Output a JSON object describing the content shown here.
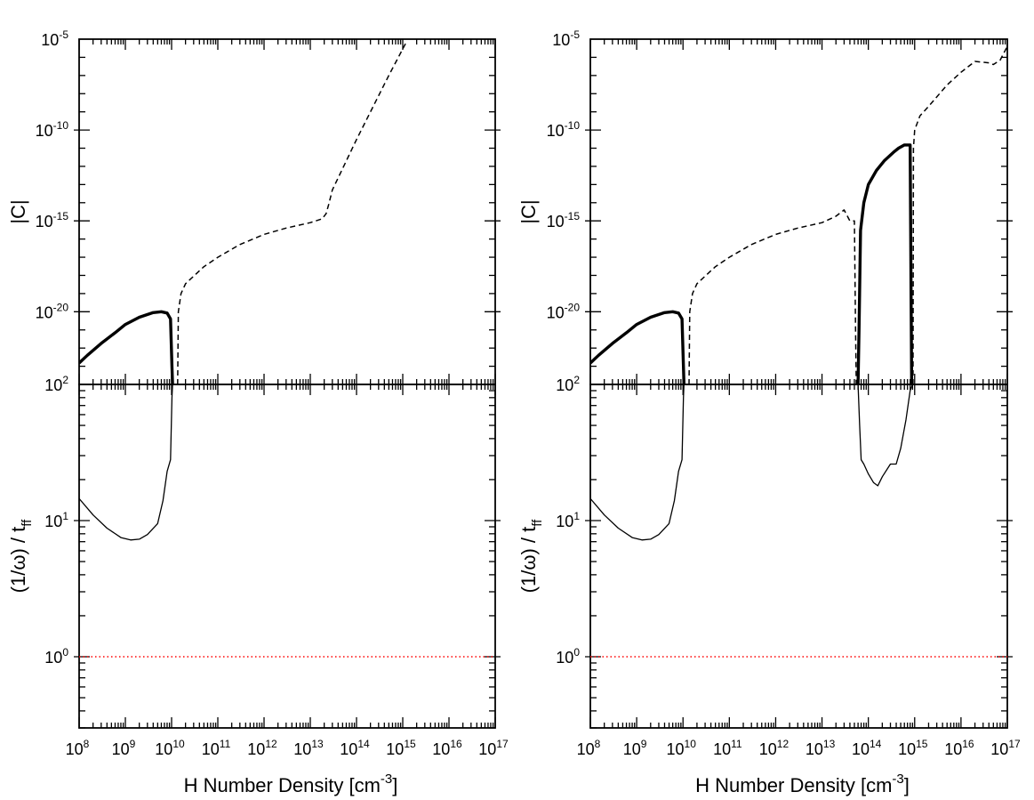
{
  "figure": {
    "colors": {
      "axes": "#000000",
      "threshold": "#ff0000",
      "background": "#ffffff"
    }
  },
  "chart_data": [
    {
      "type": "line",
      "panel": "top-left",
      "xlabel": "",
      "ylabel": "|C|",
      "xscale": "log",
      "yscale": "log",
      "xlim": [
        100000000.0,
        1e+17
      ],
      "ylim": [
        1e-24,
        1e-05
      ],
      "x_tick_labels": [],
      "y_ticks": [
        {
          "value": 1e-05,
          "base": "10",
          "exp": "-5"
        },
        {
          "value": 1e-10,
          "base": "10",
          "exp": "-10"
        },
        {
          "value": 1e-15,
          "base": "10",
          "exp": "-15"
        },
        {
          "value": 1e-20,
          "base": "10",
          "exp": "-20"
        }
      ],
      "series": [
        {
          "style": "thick-solid",
          "x": [
            100000000.0,
            150000000.0,
            300000000.0,
            600000000.0,
            1000000000.0,
            2000000000.0,
            4000000000.0,
            6000000000.0,
            8000000000.0,
            9500000000.0,
            10200000000.0,
            10500000000.0
          ],
          "y": [
            1.5e-23,
            4e-23,
            1.8e-22,
            7e-22,
            2e-21,
            5e-21,
            9e-21,
            1e-20,
            8.5e-21,
            4e-21,
            1e-23,
            1e-24
          ]
        },
        {
          "style": "dashed",
          "x": [
            13500000000.0,
            14000000000.0,
            16000000000.0,
            20000000000.0,
            50000000000.0,
            100000000000.0,
            300000000000.0,
            1000000000000.0,
            3000000000000.0,
            10000000000000.0,
            18000000000000.0,
            22000000000000.0,
            25000000000000.0,
            30000000000000.0,
            100000000000000.0,
            500000000000000.0,
            1200000000000000.0
          ],
          "y": [
            1e-24,
            1e-20,
            1e-19,
            3.5e-19,
            3e-18,
            1e-17,
            5e-17,
            1.8e-16,
            4e-16,
            8e-16,
            1.3e-15,
            2.5e-15,
            8e-15,
            5e-14,
            3e-11,
            1e-07,
            7e-06
          ]
        }
      ]
    },
    {
      "type": "line",
      "panel": "bottom-left",
      "xlabel": "H Number Density [cm",
      "xlabel_sup": "-3",
      "xlabel_end": "]",
      "ylabel": "(1/ω) / t",
      "ylabel_sub": "ff",
      "xscale": "log",
      "yscale": "log",
      "xlim": [
        100000000.0,
        1e+17
      ],
      "ylim": [
        0.3,
        100
      ],
      "x_ticks": [
        {
          "value": 100000000.0,
          "base": "10",
          "exp": "8"
        },
        {
          "value": 1000000000.0,
          "base": "10",
          "exp": "9"
        },
        {
          "value": 10000000000.0,
          "base": "10",
          "exp": "10"
        },
        {
          "value": 100000000000.0,
          "base": "10",
          "exp": "11"
        },
        {
          "value": 1000000000000.0,
          "base": "10",
          "exp": "12"
        },
        {
          "value": 10000000000000.0,
          "base": "10",
          "exp": "13"
        },
        {
          "value": 100000000000000.0,
          "base": "10",
          "exp": "14"
        },
        {
          "value": 1000000000000000.0,
          "base": "10",
          "exp": "15"
        },
        {
          "value": 1e+16,
          "base": "10",
          "exp": "16"
        },
        {
          "value": 1e+17,
          "base": "10",
          "exp": "17"
        }
      ],
      "y_ticks": [
        {
          "value": 100,
          "base": "10",
          "exp": "2"
        },
        {
          "value": 10,
          "base": "10",
          "exp": "1"
        },
        {
          "value": 1,
          "base": "10",
          "exp": "0"
        }
      ],
      "series": [
        {
          "style": "thin-solid",
          "x": [
            100000000.0,
            200000000.0,
            400000000.0,
            800000000.0,
            1300000000.0,
            2000000000.0,
            3000000000.0,
            5000000000.0,
            6500000000.0,
            8000000000.0,
            9500000000.0,
            10200000000.0,
            10500000000.0
          ],
          "y": [
            14.5,
            11,
            8.8,
            7.5,
            7.2,
            7.3,
            7.9,
            9.5,
            14,
            23,
            28,
            80,
            100
          ]
        },
        {
          "style": "dotted",
          "x": [
            100000000.0,
            1e+17
          ],
          "y": [
            1,
            1
          ]
        }
      ]
    },
    {
      "type": "line",
      "panel": "top-right",
      "xlabel": "",
      "ylabel": "|C|",
      "xscale": "log",
      "yscale": "log",
      "xlim": [
        100000000.0,
        1e+17
      ],
      "ylim": [
        1e-24,
        1e-05
      ],
      "x_tick_labels": [],
      "y_ticks": [
        {
          "value": 1e-05,
          "base": "10",
          "exp": "-5"
        },
        {
          "value": 1e-10,
          "base": "10",
          "exp": "-10"
        },
        {
          "value": 1e-15,
          "base": "10",
          "exp": "-15"
        },
        {
          "value": 1e-20,
          "base": "10",
          "exp": "-20"
        }
      ],
      "series": [
        {
          "style": "thick-solid",
          "x": [
            100000000.0,
            150000000.0,
            300000000.0,
            600000000.0,
            1000000000.0,
            2000000000.0,
            4000000000.0,
            6000000000.0,
            8000000000.0,
            9500000000.0,
            10200000000.0,
            10500000000.0
          ],
          "y": [
            1.5e-23,
            4e-23,
            1.8e-22,
            7e-22,
            2e-21,
            5e-21,
            9e-21,
            1e-20,
            8.5e-21,
            4e-21,
            1e-23,
            1e-24
          ]
        },
        {
          "style": "dashed",
          "x": [
            13500000000.0,
            14000000000.0,
            16000000000.0,
            20000000000.0,
            50000000000.0,
            100000000000.0,
            300000000000.0,
            1000000000000.0,
            3000000000000.0,
            10000000000000.0,
            20000000000000.0,
            30000000000000.0,
            40000000000000.0,
            50000000000000.0,
            53000000000000.0,
            55000000000000.0
          ],
          "y": [
            1e-24,
            1e-20,
            1e-19,
            3.5e-19,
            3e-18,
            1e-17,
            5e-17,
            1.8e-16,
            4e-16,
            8e-16,
            1.8e-15,
            4e-15,
            1e-15,
            1e-15,
            1e-21,
            1e-24
          ]
        },
        {
          "style": "thick-solid",
          "x": [
            60000000000000.0,
            63000000000000.0,
            68000000000000.0,
            80000000000000.0,
            100000000000000.0,
            150000000000000.0,
            220000000000000.0,
            350000000000000.0,
            450000000000000.0,
            600000000000000.0,
            800000000000000.0,
            830000000000000.0,
            860000000000000.0
          ],
          "y": [
            1e-24,
            1e-21,
            3e-16,
            1e-14,
            1e-13,
            6e-13,
            2e-12,
            6e-12,
            1e-11,
            1.5e-11,
            1.5e-11,
            1e-18,
            1e-24
          ]
        },
        {
          "style": "dashed",
          "x": [
            920000000000000.0,
            940000000000000.0,
            1000000000000000.0,
            1300000000000000.0,
            2000000000000000.0,
            5000000000000000.0,
            1e+16,
            2e+16,
            4e+16,
            5e+16,
            7e+16,
            1e+17
          ],
          "y": [
            1e-24,
            1e-11,
            1e-10,
            6e-10,
            2e-09,
            3e-08,
            1.5e-07,
            6e-07,
            5e-07,
            4e-07,
            7e-07,
            4e-06
          ]
        }
      ]
    },
    {
      "type": "line",
      "panel": "bottom-right",
      "xlabel": "H Number Density [cm",
      "xlabel_sup": "-3",
      "xlabel_end": "]",
      "ylabel": "(1/ω) / t",
      "ylabel_sub": "ff",
      "xscale": "log",
      "yscale": "log",
      "xlim": [
        100000000.0,
        1e+17
      ],
      "ylim": [
        0.3,
        100
      ],
      "x_ticks": [
        {
          "value": 100000000.0,
          "base": "10",
          "exp": "8"
        },
        {
          "value": 1000000000.0,
          "base": "10",
          "exp": "9"
        },
        {
          "value": 10000000000.0,
          "base": "10",
          "exp": "10"
        },
        {
          "value": 100000000000.0,
          "base": "10",
          "exp": "11"
        },
        {
          "value": 1000000000000.0,
          "base": "10",
          "exp": "12"
        },
        {
          "value": 10000000000000.0,
          "base": "10",
          "exp": "13"
        },
        {
          "value": 100000000000000.0,
          "base": "10",
          "exp": "14"
        },
        {
          "value": 1000000000000000.0,
          "base": "10",
          "exp": "15"
        },
        {
          "value": 1e+16,
          "base": "10",
          "exp": "16"
        },
        {
          "value": 1e+17,
          "base": "10",
          "exp": "17"
        }
      ],
      "y_ticks": [
        {
          "value": 100,
          "base": "10",
          "exp": "2"
        },
        {
          "value": 10,
          "base": "10",
          "exp": "1"
        },
        {
          "value": 1,
          "base": "10",
          "exp": "0"
        }
      ],
      "series": [
        {
          "style": "thin-solid",
          "x": [
            100000000.0,
            200000000.0,
            400000000.0,
            800000000.0,
            1300000000.0,
            2000000000.0,
            3000000000.0,
            5000000000.0,
            6500000000.0,
            8000000000.0,
            9500000000.0,
            10200000000.0,
            10500000000.0
          ],
          "y": [
            14.5,
            11,
            8.8,
            7.5,
            7.2,
            7.3,
            7.9,
            9.5,
            14,
            23,
            28,
            80,
            100
          ]
        },
        {
          "style": "thin-solid",
          "x": [
            60000000000000.0,
            65000000000000.0,
            70000000000000.0,
            80000000000000.0,
            100000000000000.0,
            130000000000000.0,
            160000000000000.0,
            200000000000000.0,
            300000000000000.0,
            400000000000000.0,
            500000000000000.0,
            650000000000000.0,
            800000000000000.0,
            900000000000000.0
          ],
          "y": [
            100,
            50,
            28,
            26,
            22,
            19,
            18,
            21,
            26,
            26,
            34,
            55,
            90,
            100
          ]
        },
        {
          "style": "dotted",
          "x": [
            100000000.0,
            1e+17
          ],
          "y": [
            1,
            1
          ]
        }
      ]
    }
  ]
}
